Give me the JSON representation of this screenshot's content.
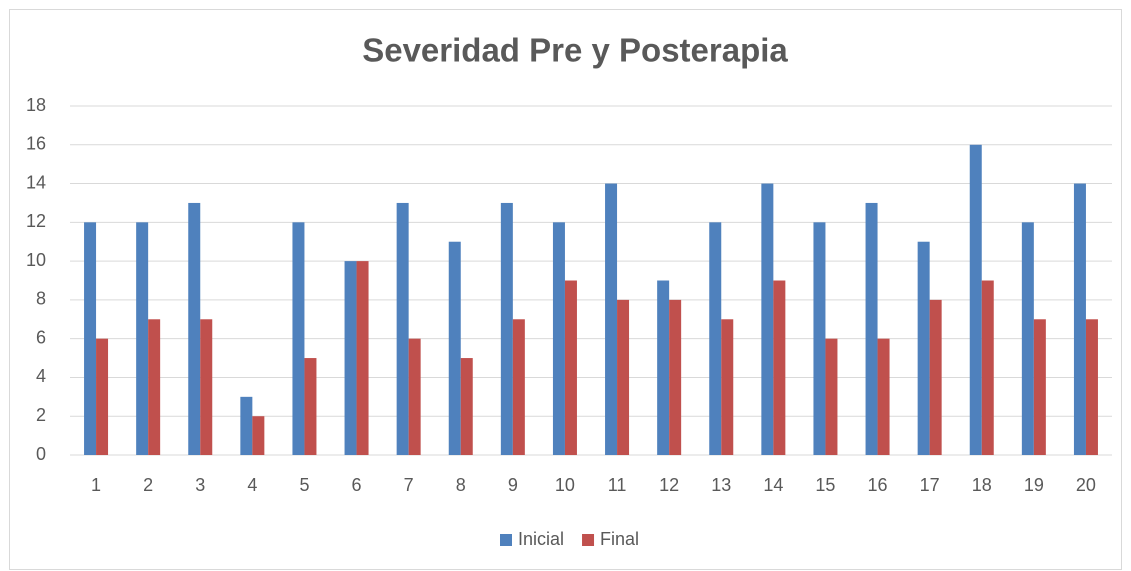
{
  "chart_data": {
    "type": "bar",
    "title": "Severidad Pre y Posterapia",
    "categories": [
      "1",
      "2",
      "3",
      "4",
      "5",
      "6",
      "7",
      "8",
      "9",
      "10",
      "11",
      "12",
      "13",
      "14",
      "15",
      "16",
      "17",
      "18",
      "19",
      "20"
    ],
    "series": [
      {
        "name": "Inicial",
        "color": "#4f81bd",
        "values": [
          12,
          12,
          13,
          3,
          12,
          10,
          13,
          11,
          13,
          12,
          14,
          9,
          12,
          14,
          12,
          13,
          11,
          16,
          12,
          14
        ]
      },
      {
        "name": "Final",
        "color": "#c0504d",
        "values": [
          6,
          7,
          7,
          2,
          5,
          10,
          6,
          5,
          7,
          9,
          8,
          8,
          7,
          9,
          6,
          6,
          8,
          9,
          7,
          7
        ]
      }
    ],
    "ylim": [
      0,
      18
    ],
    "yticks": [
      0,
      2,
      4,
      6,
      8,
      10,
      12,
      14,
      16,
      18
    ],
    "grid": true,
    "legend": "bottom"
  }
}
